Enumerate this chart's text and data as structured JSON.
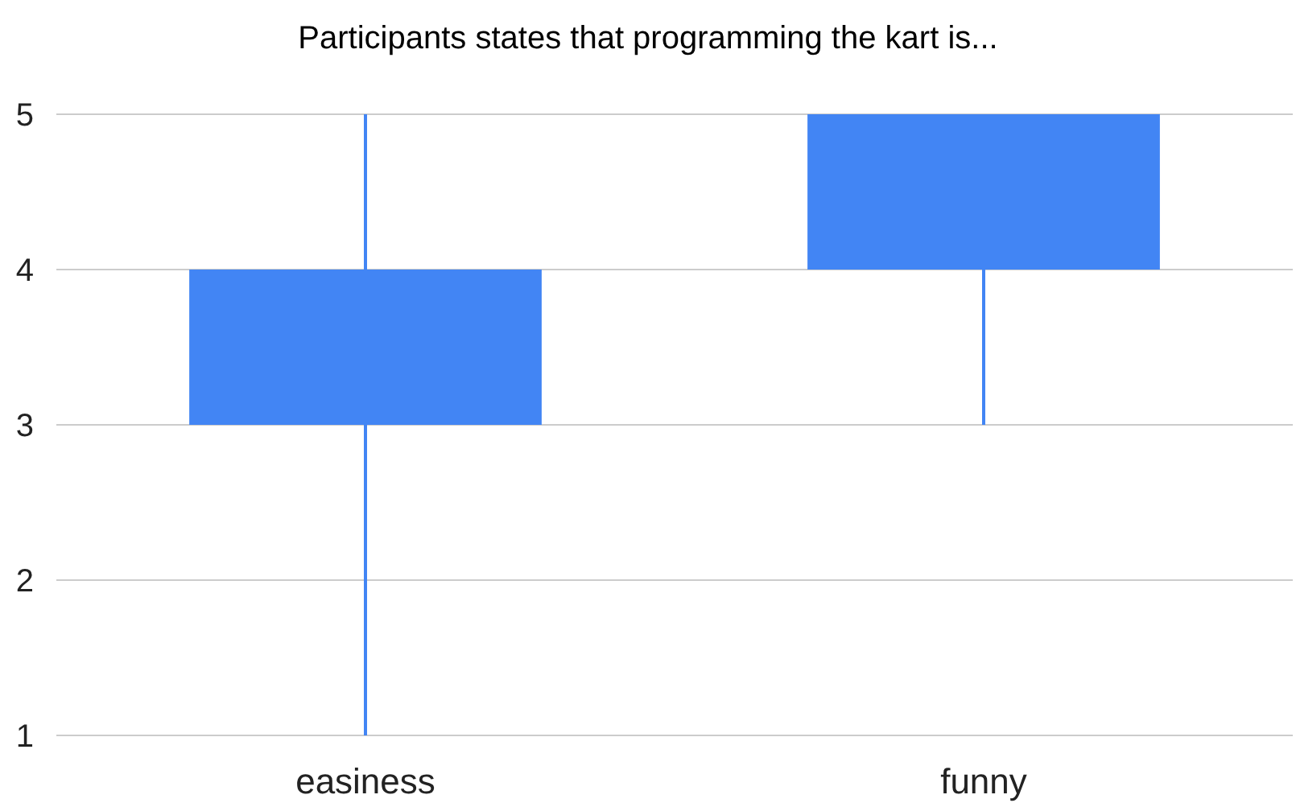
{
  "chart_data": {
    "type": "candlestick",
    "title": "Participants states that programming the kart is...",
    "categories": [
      "easiness",
      "funny"
    ],
    "ohlc": [
      [
        3,
        5,
        1,
        4
      ],
      [
        4,
        5,
        3,
        5
      ]
    ],
    "color": "#4285f4",
    "ylim": [
      1,
      5
    ],
    "yticks": [
      1,
      2,
      3,
      4,
      5
    ],
    "grid": "y"
  }
}
